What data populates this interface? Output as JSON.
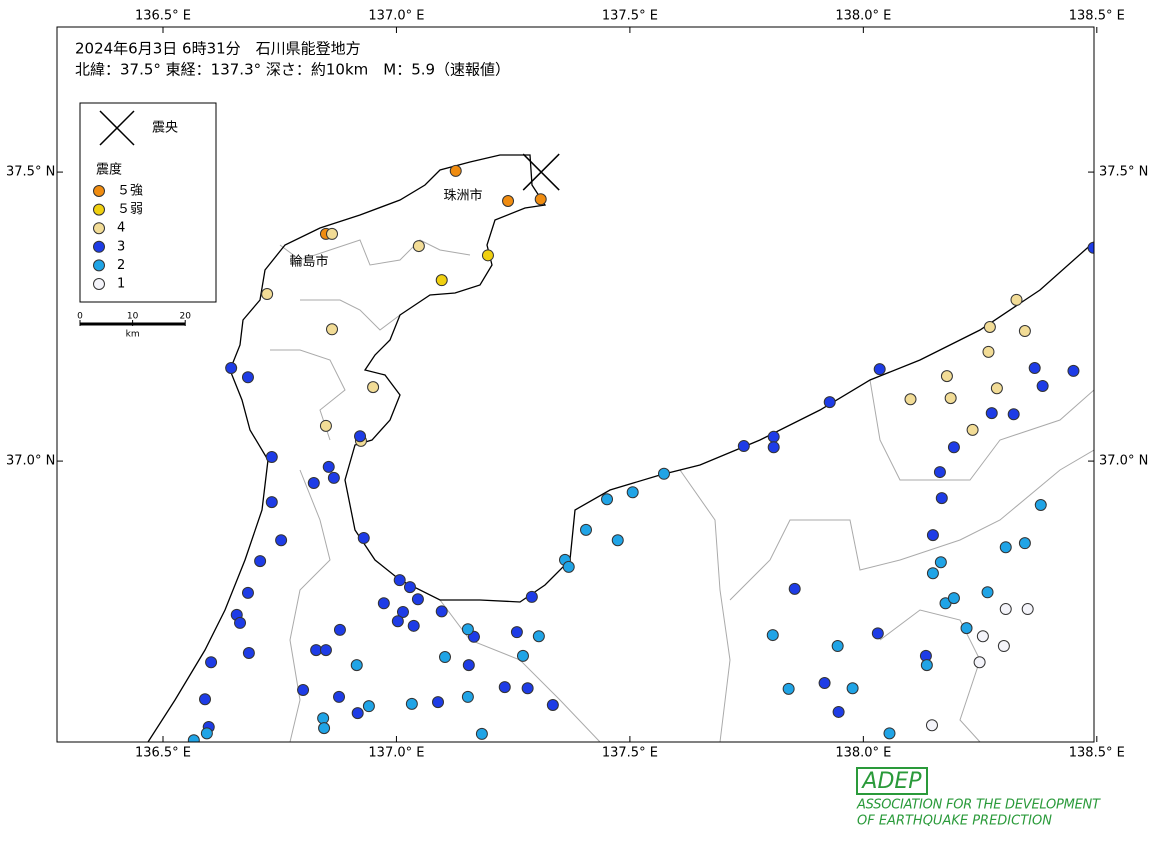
{
  "header": {
    "line1": "2024年6月3日 6時31分　石川県能登地方",
    "line2": "北緯：37.5° 東経：137.3° 深さ：約10km　M：5.9（速報値）"
  },
  "legend": {
    "epicenter": "震央",
    "intensity_title": "震度",
    "classes": [
      {
        "label": "５強",
        "color": "#f08c10"
      },
      {
        "label": "５弱",
        "color": "#f0d010"
      },
      {
        "label": "4",
        "color": "#f2dc96"
      },
      {
        "label": "3",
        "color": "#1e3ce6"
      },
      {
        "label": "2",
        "color": "#20a4e6"
      },
      {
        "label": "1",
        "color": "#f4f4fa"
      }
    ]
  },
  "scale_bar": {
    "ticks": [
      0,
      10,
      20
    ],
    "unit": "km"
  },
  "map": {
    "lonlim": [
      136.273,
      138.494
    ],
    "latlim": [
      36.514,
      37.751
    ],
    "lonticks": [
      {
        "value": 136.5,
        "label": "136.5° E"
      },
      {
        "value": 137.0,
        "label": "137.0° E"
      },
      {
        "value": 137.5,
        "label": "137.5° E"
      },
      {
        "value": 138.0,
        "label": "138.0° E"
      },
      {
        "value": 138.5,
        "label": "138.5° E"
      }
    ],
    "latticks": [
      {
        "value": 37.0,
        "label": "37.0° N"
      },
      {
        "value": 37.5,
        "label": "37.5° N"
      }
    ],
    "epicenter": {
      "lon": 137.31,
      "lat": 37.5
    },
    "cities": [
      "珠洲市",
      "輪島市"
    ],
    "station_lon": [
      136.849,
      137.127,
      137.239,
      137.309,
      137.097,
      137.196,
      136.862,
      136.723,
      137.048,
      136.862,
      136.95,
      136.849,
      136.924,
      138.101,
      138.179,
      138.187,
      138.268,
      138.286,
      138.328,
      138.271,
      138.346,
      138.234,
      136.646,
      136.682,
      136.733,
      136.855,
      136.866,
      136.823,
      136.733,
      136.922,
      136.93,
      136.753,
      136.708,
      136.682,
      136.658,
      136.665,
      136.684,
      136.603,
      136.59,
      136.598,
      137.007,
      137.029,
      137.046,
      136.973,
      137.014,
      137.003,
      137.037,
      137.097,
      137.29,
      137.258,
      137.166,
      136.879,
      136.828,
      136.849,
      136.877,
      136.917,
      136.8,
      137.089,
      137.155,
      137.232,
      137.281,
      137.335,
      137.744,
      137.808,
      137.808,
      137.928,
      138.035,
      138.164,
      138.168,
      138.194,
      138.149,
      138.275,
      138.322,
      138.367,
      138.384,
      138.45,
      138.493,
      137.853,
      138.031,
      138.134,
      137.917,
      137.947,
      137.573,
      137.506,
      137.451,
      137.406,
      137.474,
      137.361,
      137.369,
      137.153,
      137.305,
      137.271,
      137.104,
      137.153,
      137.033,
      136.915,
      136.941,
      136.843,
      136.845,
      136.594,
      136.566,
      137.183,
      137.806,
      137.945,
      137.84,
      137.977,
      138.056,
      138.166,
      138.149,
      138.176,
      138.194,
      138.266,
      138.221,
      138.136,
      138.305,
      138.346,
      138.38,
      138.305,
      138.352,
      138.256,
      138.301,
      138.249,
      138.147
    ],
    "station_lat": [
      37.393,
      37.502,
      37.45,
      37.453,
      37.313,
      37.356,
      37.393,
      37.289,
      37.372,
      37.228,
      37.128,
      37.061,
      37.035,
      37.107,
      37.147,
      37.109,
      37.189,
      37.126,
      37.279,
      37.232,
      37.225,
      37.054,
      37.161,
      37.145,
      37.007,
      36.99,
      36.971,
      36.962,
      36.929,
      37.043,
      36.867,
      36.863,
      36.827,
      36.772,
      36.734,
      36.72,
      36.668,
      36.652,
      36.588,
      36.54,
      36.794,
      36.782,
      36.761,
      36.754,
      36.739,
      36.723,
      36.715,
      36.74,
      36.765,
      36.704,
      36.696,
      36.708,
      36.673,
      36.673,
      36.592,
      36.564,
      36.604,
      36.583,
      36.647,
      36.609,
      36.607,
      36.578,
      37.026,
      37.042,
      37.024,
      37.102,
      37.159,
      36.981,
      36.936,
      37.024,
      36.872,
      37.083,
      37.081,
      37.161,
      37.13,
      37.156,
      37.369,
      36.779,
      36.702,
      36.663,
      36.616,
      36.566,
      36.978,
      36.946,
      36.934,
      36.881,
      36.863,
      36.829,
      36.817,
      36.709,
      36.697,
      36.663,
      36.661,
      36.592,
      36.58,
      36.647,
      36.576,
      36.555,
      36.538,
      36.529,
      36.517,
      36.528,
      36.699,
      36.68,
      36.606,
      36.607,
      36.529,
      36.825,
      36.806,
      36.754,
      36.763,
      36.773,
      36.711,
      36.647,
      36.851,
      36.858,
      36.924,
      36.744,
      36.744,
      36.697,
      36.68,
      36.652,
      36.543
    ],
    "station_intensity": [
      "５強",
      "５強",
      "５強",
      "５強",
      "５弱",
      "５弱",
      "4",
      "4",
      "4",
      "4",
      "4",
      "4",
      "4",
      "4",
      "4",
      "4",
      "4",
      "4",
      "4",
      "4",
      "4",
      "4",
      "3",
      "3",
      "3",
      "3",
      "3",
      "3",
      "3",
      "3",
      "3",
      "3",
      "3",
      "3",
      "3",
      "3",
      "3",
      "3",
      "3",
      "3",
      "3",
      "3",
      "3",
      "3",
      "3",
      "3",
      "3",
      "3",
      "3",
      "3",
      "3",
      "3",
      "3",
      "3",
      "3",
      "3",
      "3",
      "3",
      "3",
      "3",
      "3",
      "3",
      "3",
      "3",
      "3",
      "3",
      "3",
      "3",
      "3",
      "3",
      "3",
      "3",
      "3",
      "3",
      "3",
      "3",
      "3",
      "3",
      "3",
      "3",
      "3",
      "3",
      "2",
      "2",
      "2",
      "2",
      "2",
      "2",
      "2",
      "2",
      "2",
      "2",
      "2",
      "2",
      "2",
      "2",
      "2",
      "2",
      "2",
      "2",
      "2",
      "2",
      "2",
      "2",
      "2",
      "2",
      "2",
      "2",
      "2",
      "2",
      "2",
      "2",
      "2",
      "2",
      "2",
      "2",
      "2",
      "1",
      "1",
      "1",
      "1",
      "1",
      "1"
    ]
  },
  "logo": {
    "mark": "ADEP",
    "line1": "ASSOCIATION FOR THE DEVELOPMENT",
    "line2": "OF EARTHQUAKE PREDICTION"
  }
}
